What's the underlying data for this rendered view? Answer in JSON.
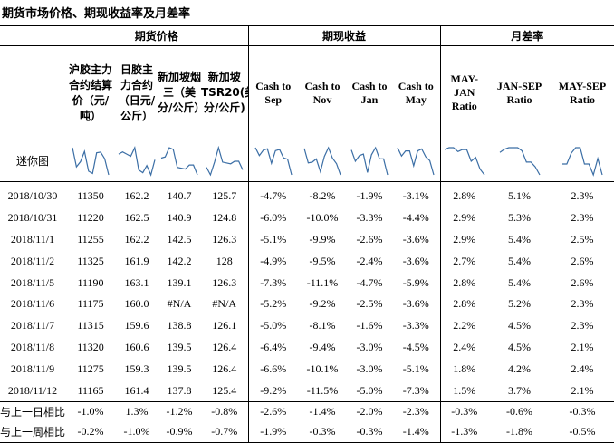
{
  "title": "期货市场价格、期现收益率及月差率",
  "groups": {
    "futures": "期货价格",
    "basis": "期现收益",
    "spread": "月差率"
  },
  "columns": [
    "沪胶主力合约结算价（元/吨）",
    "日胶主力合约（日元/公斤）",
    "新加坡烟三（美分/公斤）",
    "新加坡TSR20(美分/公斤)",
    "Cash to Sep",
    "Cash to Nov",
    "Cash to Jan",
    "Cash to May",
    "MAY-JAN Ratio",
    "JAN-SEP Ratio",
    "MAY-SEP Ratio"
  ],
  "sparkline_label": "迷你图",
  "rows": [
    {
      "date": "2018/10/30",
      "values": [
        "11350",
        "162.2",
        "140.7",
        "125.7",
        "-4.7%",
        "-8.2%",
        "-1.9%",
        "-3.1%",
        "2.8%",
        "5.1%",
        "2.3%"
      ]
    },
    {
      "date": "2018/10/31",
      "values": [
        "11220",
        "162.5",
        "140.9",
        "124.8",
        "-6.0%",
        "-10.0%",
        "-3.3%",
        "-4.4%",
        "2.9%",
        "5.3%",
        "2.3%"
      ]
    },
    {
      "date": "2018/11/1",
      "values": [
        "11255",
        "162.2",
        "142.5",
        "126.3",
        "-5.1%",
        "-9.9%",
        "-2.6%",
        "-3.6%",
        "2.9%",
        "5.4%",
        "2.5%"
      ]
    },
    {
      "date": "2018/11/2",
      "values": [
        "11325",
        "161.9",
        "142.2",
        "128",
        "-4.9%",
        "-9.5%",
        "-2.4%",
        "-3.6%",
        "2.7%",
        "5.4%",
        "2.6%"
      ]
    },
    {
      "date": "2018/11/5",
      "values": [
        "11190",
        "163.1",
        "139.1",
        "126.3",
        "-7.3%",
        "-11.1%",
        "-4.7%",
        "-5.9%",
        "2.8%",
        "5.4%",
        "2.6%"
      ]
    },
    {
      "date": "2018/11/6",
      "values": [
        "11175",
        "160.0",
        "#N/A",
        "#N/A",
        "-5.2%",
        "-9.2%",
        "-2.5%",
        "-3.6%",
        "2.8%",
        "5.2%",
        "2.3%"
      ]
    },
    {
      "date": "2018/11/7",
      "values": [
        "11315",
        "159.6",
        "138.8",
        "126.1",
        "-5.0%",
        "-8.1%",
        "-1.6%",
        "-3.3%",
        "2.2%",
        "4.5%",
        "2.3%"
      ]
    },
    {
      "date": "2018/11/8",
      "values": [
        "11320",
        "160.6",
        "139.5",
        "126.4",
        "-6.4%",
        "-9.4%",
        "-3.0%",
        "-4.5%",
        "2.4%",
        "4.5%",
        "2.1%"
      ]
    },
    {
      "date": "2018/11/9",
      "values": [
        "11275",
        "159.3",
        "139.5",
        "126.4",
        "-6.6%",
        "-10.1%",
        "-3.0%",
        "-5.1%",
        "1.8%",
        "4.2%",
        "2.4%"
      ]
    },
    {
      "date": "2018/11/12",
      "values": [
        "11165",
        "161.4",
        "137.8",
        "125.4",
        "-9.2%",
        "-11.5%",
        "-5.0%",
        "-7.3%",
        "1.5%",
        "3.7%",
        "2.1%"
      ]
    }
  ],
  "comparisons": [
    {
      "label": "与上一日相比",
      "values": [
        "-1.0%",
        "1.3%",
        "-1.2%",
        "-0.8%",
        "-2.6%",
        "-1.4%",
        "-2.0%",
        "-2.3%",
        "-0.3%",
        "-0.6%",
        "-0.3%"
      ]
    },
    {
      "label": "与上一周相比",
      "values": [
        "-0.2%",
        "-1.0%",
        "-0.9%",
        "-0.7%",
        "-1.9%",
        "-0.3%",
        "-0.3%",
        "-1.4%",
        "-1.3%",
        "-1.8%",
        "-0.5%"
      ]
    }
  ],
  "sparkline_color": "#3b6ea5"
}
